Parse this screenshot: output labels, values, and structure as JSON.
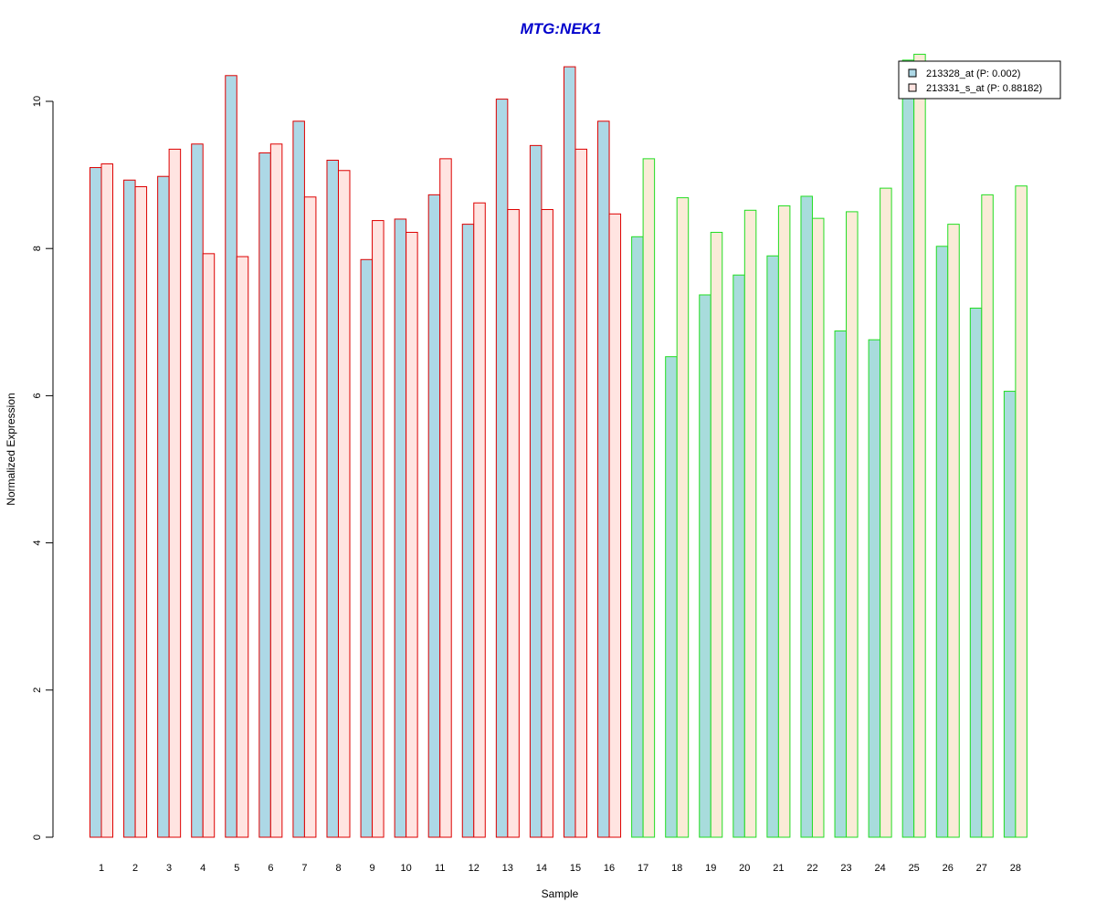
{
  "chart_data": {
    "type": "bar",
    "title": "MTG:NEK1",
    "xlabel": "Sample",
    "ylabel": "Normalized Expression",
    "ylim": [
      0,
      10.6
    ],
    "yticks": [
      0,
      2,
      4,
      6,
      8,
      10
    ],
    "grid": false,
    "legend_position": "top-right",
    "categories": [
      "1",
      "2",
      "3",
      "4",
      "5",
      "6",
      "7",
      "8",
      "9",
      "10",
      "11",
      "12",
      "13",
      "14",
      "15",
      "16",
      "17",
      "18",
      "19",
      "20",
      "21",
      "22",
      "23",
      "24",
      "25",
      "26",
      "27",
      "28"
    ],
    "group_border_colors": [
      "#dd0000",
      "#dd0000",
      "#dd0000",
      "#dd0000",
      "#dd0000",
      "#dd0000",
      "#dd0000",
      "#dd0000",
      "#dd0000",
      "#dd0000",
      "#dd0000",
      "#dd0000",
      "#dd0000",
      "#dd0000",
      "#dd0000",
      "#dd0000",
      "#22dd22",
      "#22dd22",
      "#22dd22",
      "#22dd22",
      "#22dd22",
      "#22dd22",
      "#22dd22",
      "#22dd22",
      "#22dd22",
      "#22dd22",
      "#22dd22",
      "#22dd22"
    ],
    "series": [
      {
        "name": "213328_at (P: 0.002)",
        "fill_color": "#add8e6",
        "values": [
          9.1,
          8.93,
          8.98,
          9.42,
          10.35,
          9.3,
          9.73,
          9.2,
          7.85,
          8.4,
          8.73,
          8.33,
          10.03,
          9.4,
          10.47,
          9.73,
          8.16,
          6.53,
          7.37,
          7.64,
          7.9,
          8.71,
          6.88,
          6.76,
          10.56,
          8.03,
          7.19,
          6.06
        ]
      },
      {
        "name": "213331_s_at (P: 0.88182)",
        "fill_color": "#ffe4e1",
        "fill_color_alt": "#faebd7",
        "values": [
          9.15,
          8.84,
          9.35,
          7.93,
          7.89,
          9.42,
          8.7,
          9.06,
          8.38,
          8.22,
          9.22,
          8.62,
          8.53,
          8.53,
          9.35,
          8.47,
          9.22,
          8.69,
          8.22,
          8.52,
          8.58,
          8.41,
          8.5,
          8.82,
          10.64,
          8.33,
          8.73,
          8.85
        ]
      }
    ],
    "colors": {
      "title": "#0000cc",
      "axis": "#000000",
      "legend_border": "#000000"
    }
  }
}
